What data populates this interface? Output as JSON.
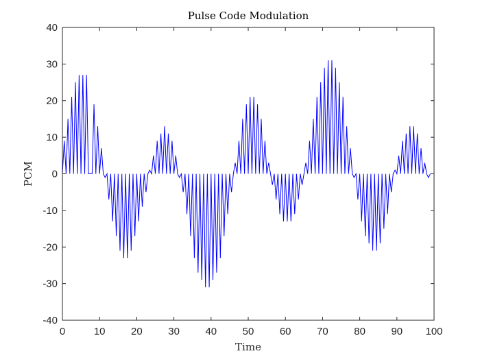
{
  "chart_data": {
    "type": "line",
    "title": "Pulse Code Modulation",
    "xlabel": "Time",
    "ylabel": "PCM",
    "xlim": [
      0,
      100
    ],
    "ylim": [
      -40,
      40
    ],
    "xticks": [
      0,
      10,
      20,
      30,
      40,
      50,
      60,
      70,
      80,
      90,
      100
    ],
    "yticks": [
      40,
      30,
      20,
      10,
      0,
      -10,
      -20,
      -30,
      -40
    ],
    "grid": false,
    "legend": "none",
    "series": [
      {
        "color": "#0000ff",
        "sample_values": [
          9,
          15,
          21,
          25,
          27,
          27,
          27,
          0,
          19,
          13,
          7,
          -1,
          -7,
          -13,
          -17,
          -21,
          -23,
          -23,
          -21,
          -17,
          -13,
          -9,
          -5,
          1,
          5,
          9,
          11,
          13,
          11,
          9,
          5,
          -1,
          -5,
          -11,
          -17,
          -23,
          -27,
          -29,
          -31,
          -31,
          -29,
          -27,
          -23,
          -17,
          -11,
          -5,
          3,
          9,
          15,
          19,
          21,
          21,
          19,
          15,
          9,
          3,
          -3,
          -7,
          -11,
          -13,
          -13,
          -13,
          -11,
          -7,
          -3,
          3,
          9,
          15,
          21,
          25,
          29,
          31,
          31,
          29,
          25,
          21,
          13,
          7,
          -1,
          -7,
          -13,
          -17,
          -19,
          -21,
          -21,
          -19,
          -15,
          -11,
          -5,
          1,
          5,
          9,
          11,
          13,
          13,
          11,
          7,
          3,
          -1
        ]
      }
    ]
  }
}
